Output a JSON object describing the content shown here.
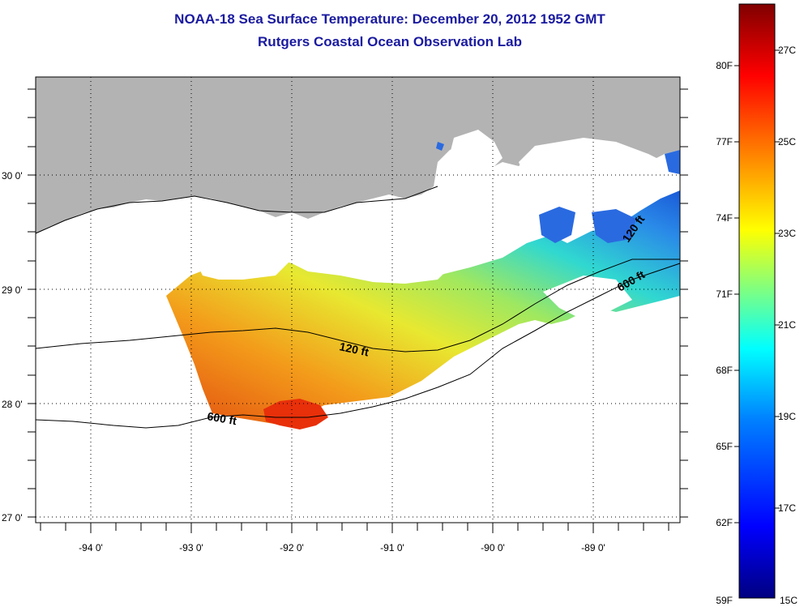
{
  "header": {
    "title": "NOAA-18 Sea Surface Temperature:  December 20, 2012 1952 GMT",
    "subtitle": "Rutgers Coastal Ocean Observation Lab"
  },
  "map": {
    "lon_labels": [
      "-94 0'",
      "-93 0'",
      "-92 0'",
      "-91 0'",
      "-90 0'",
      "-89 0'"
    ],
    "lat_labels": [
      "30 0'",
      "29 0'",
      "28 0'",
      "27 0'"
    ],
    "contour_labels": [
      "120 ft",
      "600 ft",
      "120 ft",
      "600 ft"
    ],
    "colors": {
      "land": "#b3b3b3",
      "no_data": "#ffffff"
    }
  },
  "colorbar": {
    "f_labels": [
      "80F",
      "77F",
      "74F",
      "71F",
      "68F",
      "65F",
      "62F",
      "59F"
    ],
    "c_labels": [
      "27C",
      "25C",
      "23C",
      "21C",
      "19C",
      "17C",
      "15C"
    ],
    "stops": [
      "#800000",
      "#ff0000",
      "#ff8000",
      "#ffff00",
      "#80ff80",
      "#00ffff",
      "#0080ff",
      "#0000ff",
      "#000080"
    ]
  }
}
